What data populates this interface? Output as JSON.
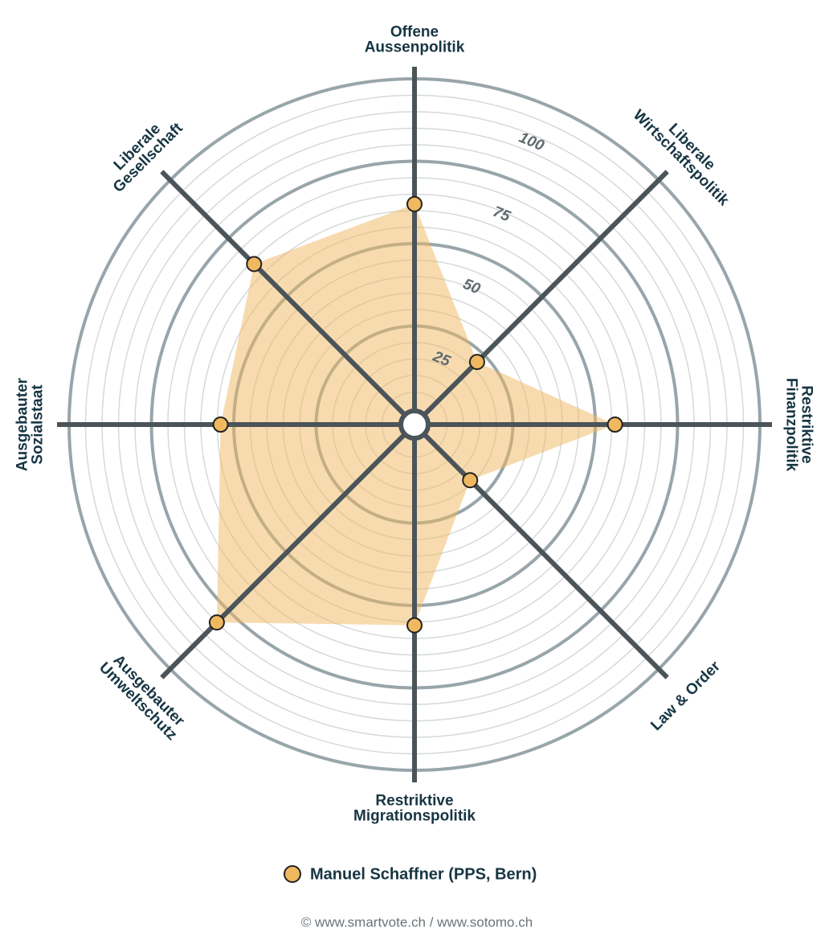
{
  "chart_data": {
    "type": "radar",
    "categories": [
      "Offene\nAussenpolitik",
      "Liberale\nWirtschaftspolitik",
      "Restriktive\nFinanzpolitik",
      "Law & Order",
      "Restriktive\nMigrationspolitik",
      "Ausgebauter\nUmweltschutz",
      "Ausgebauter\nSozialstaat",
      "Liberale\nGesellschaft"
    ],
    "series": [
      {
        "name": "Manuel Schaffner (PPS, Bern)",
        "color": "#f0b85f",
        "values": [
          62,
          22,
          56,
          19,
          56,
          80,
          54,
          64
        ]
      }
    ],
    "ylim": [
      0,
      100
    ],
    "yticks": [
      25,
      50,
      75,
      100
    ],
    "grid": true,
    "footer": "© www.smartvote.ch / www.sotomo.ch"
  }
}
